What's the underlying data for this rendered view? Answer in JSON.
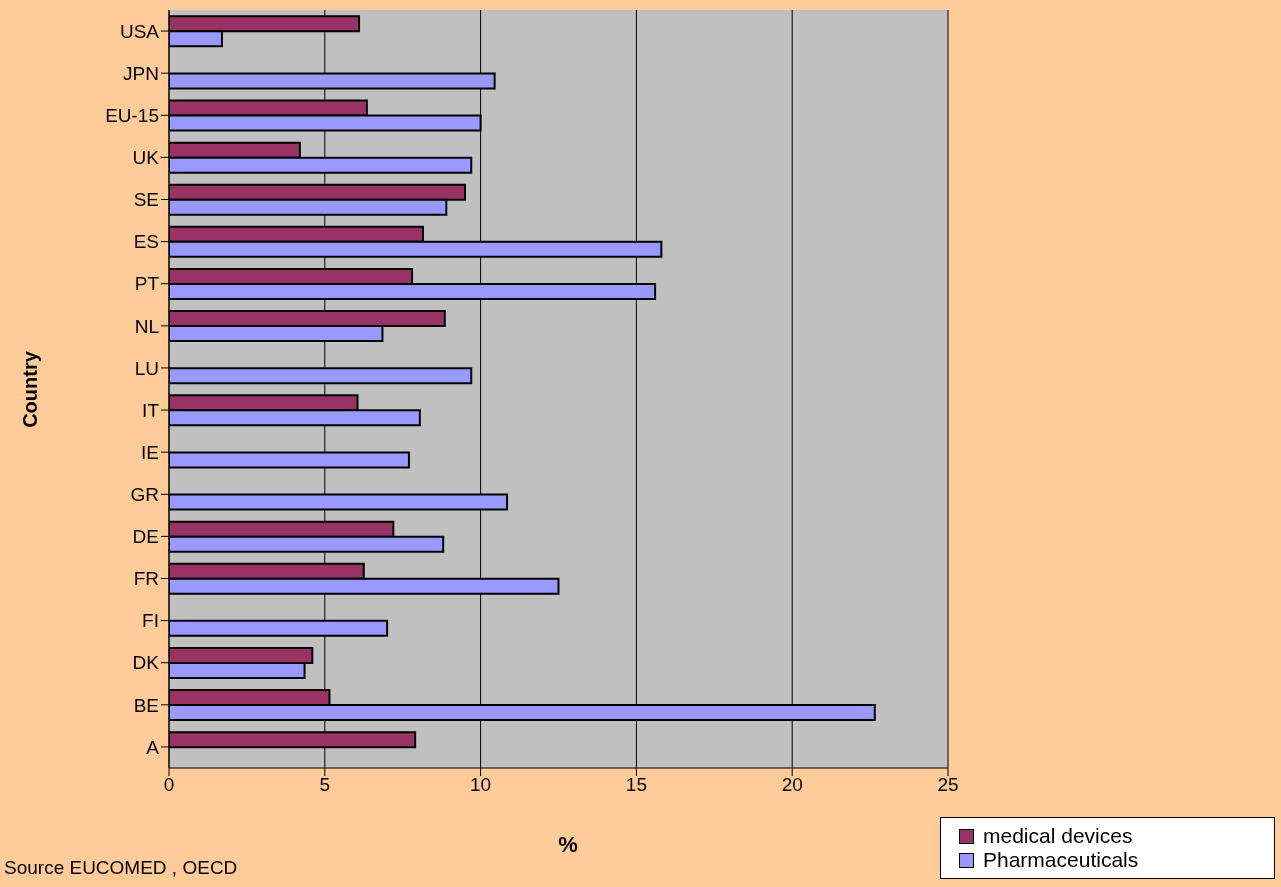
{
  "chart_data": {
    "type": "bar",
    "orientation": "horizontal",
    "ylabel": "Country",
    "xlabel": "%",
    "categories": [
      "USA",
      "JPN",
      "EU-15",
      "UK",
      "SE",
      "ES",
      "PT",
      "NL",
      "LU",
      "IT",
      "IE",
      "GR",
      "DE",
      "FR",
      "FI",
      "DK",
      "BE",
      "A"
    ],
    "series": [
      {
        "name": "medical devices",
        "color": "#993366",
        "values": [
          6.1,
          null,
          6.35,
          4.2,
          9.5,
          8.15,
          7.8,
          8.85,
          null,
          6.05,
          null,
          null,
          7.2,
          6.25,
          null,
          4.6,
          5.15,
          7.9
        ]
      },
      {
        "name": "Pharmaceuticals",
        "color": "#9999ff",
        "values": [
          1.7,
          10.45,
          10.0,
          9.7,
          8.9,
          15.8,
          15.6,
          6.85,
          9.7,
          8.05,
          7.7,
          10.85,
          8.8,
          12.5,
          7.0,
          4.35,
          22.65,
          null
        ]
      }
    ],
    "xlim": [
      0,
      25
    ],
    "xticks": [
      0,
      5,
      10,
      15,
      20,
      25
    ],
    "grid": "x",
    "legend": "bottom right",
    "annotations": [
      "Source EUCOMED , OECD"
    ]
  }
}
